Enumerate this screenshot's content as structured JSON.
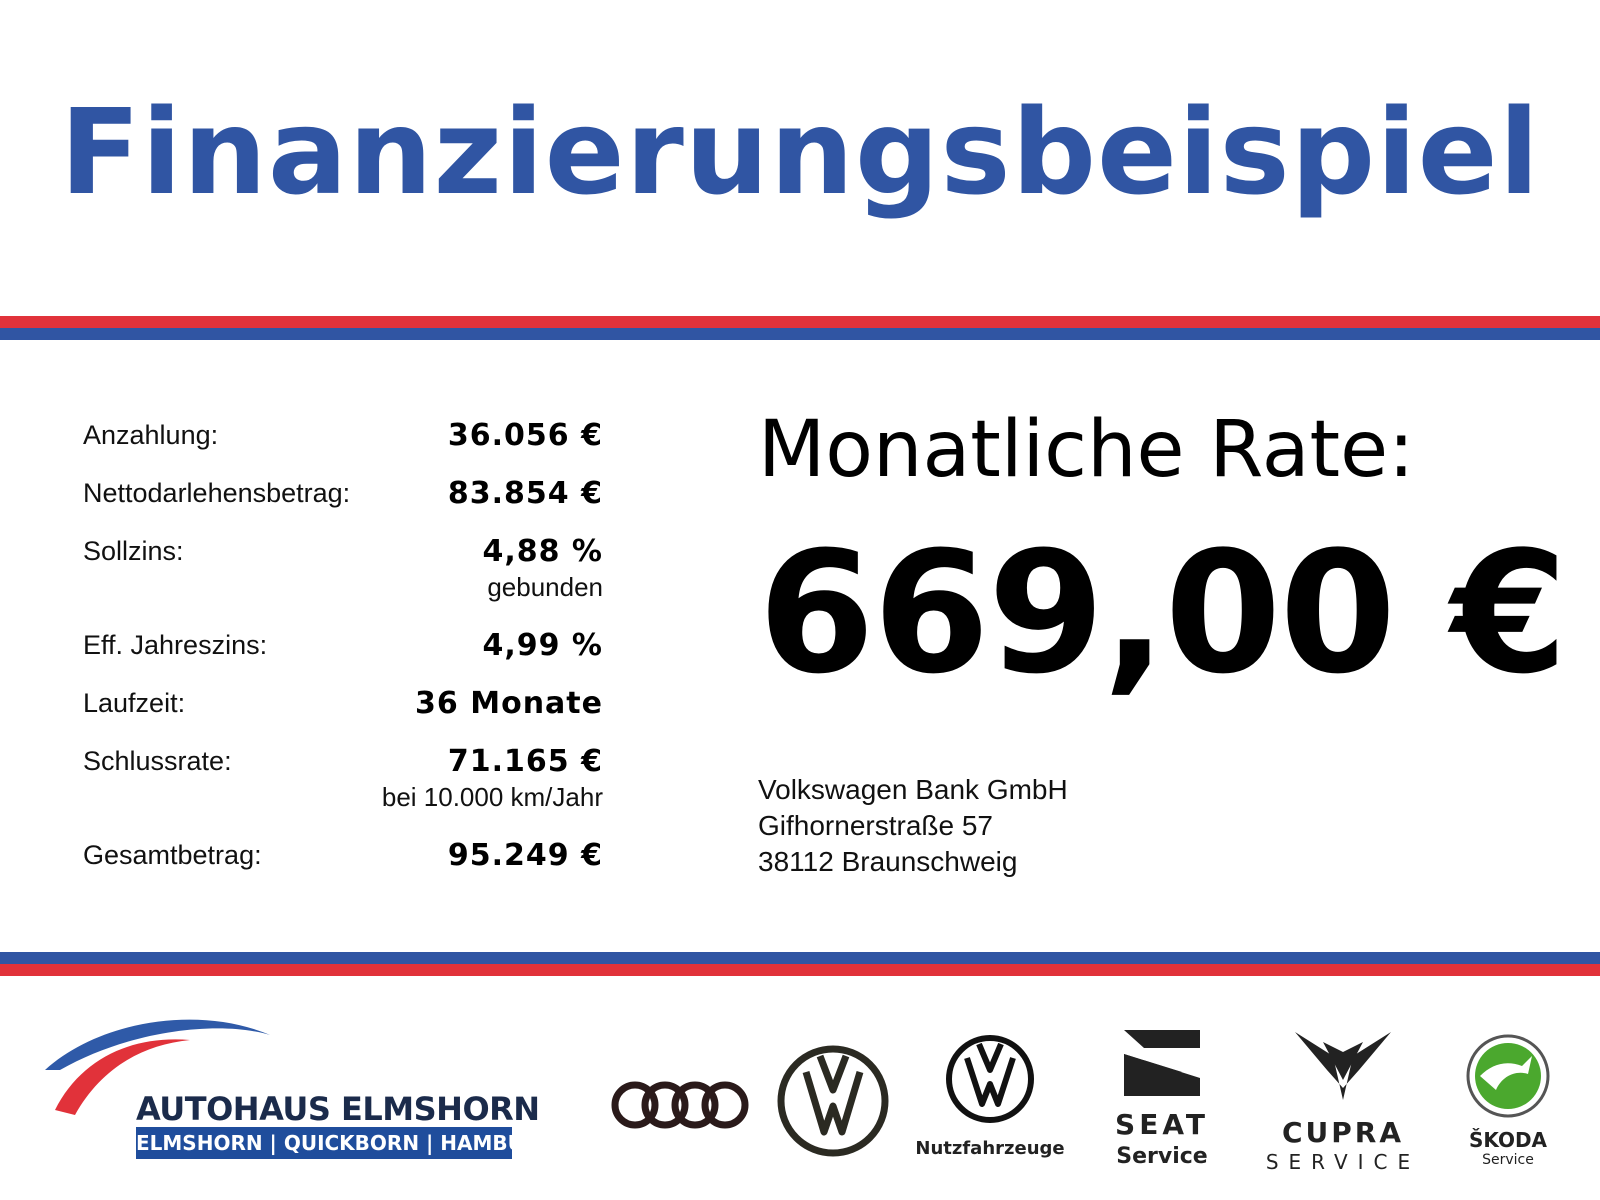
{
  "title": "Finanzierungsbeispiel",
  "colors": {
    "accent_blue": "#3055a3",
    "accent_red": "#e1323a"
  },
  "details": [
    {
      "label": "Anzahlung:",
      "value": "36.056 €",
      "sub": ""
    },
    {
      "label": "Nettodarlehensbetrag:",
      "value": "83.854 €",
      "sub": ""
    },
    {
      "label": "Sollzins:",
      "value": "4,88 %",
      "sub": "gebunden"
    },
    {
      "label": "Eff. Jahreszins:",
      "value": "4,99 %",
      "sub": ""
    },
    {
      "label": "Laufzeit:",
      "value": "36 Monate",
      "sub": ""
    },
    {
      "label": "Schlussrate:",
      "value": "71.165 €",
      "sub": "bei 10.000 km/Jahr"
    },
    {
      "label": "Gesamtbetrag:",
      "value": "95.249 €",
      "sub": ""
    }
  ],
  "rate": {
    "label": "Monatliche Rate:",
    "value": "669,00 €"
  },
  "bank": {
    "name": "Volkswagen Bank GmbH",
    "street": "Gifhornerstraße 57",
    "city": "38112 Braunschweig"
  },
  "footer": {
    "dealer_name": "AUTOHAUS ELMSHORN",
    "dealer_locations": "ELMSHORN | QUICKBORN | HAMBURG",
    "logos": {
      "audi": "audi-rings-icon",
      "vw": "vw-icon",
      "vw_commercial": "vw-commercial-icon",
      "seat": "seat-icon",
      "cupra": "cupra-icon",
      "skoda": "skoda-icon"
    },
    "vw_commercial_caption": "Nutzfahrzeuge",
    "seat_wordmark": "SEAT",
    "seat_caption": "Service",
    "cupra_wordmark": "CUPRA",
    "cupra_caption": "SERVICE",
    "skoda_wordmark": "ŠKODA",
    "skoda_caption": "Service"
  }
}
